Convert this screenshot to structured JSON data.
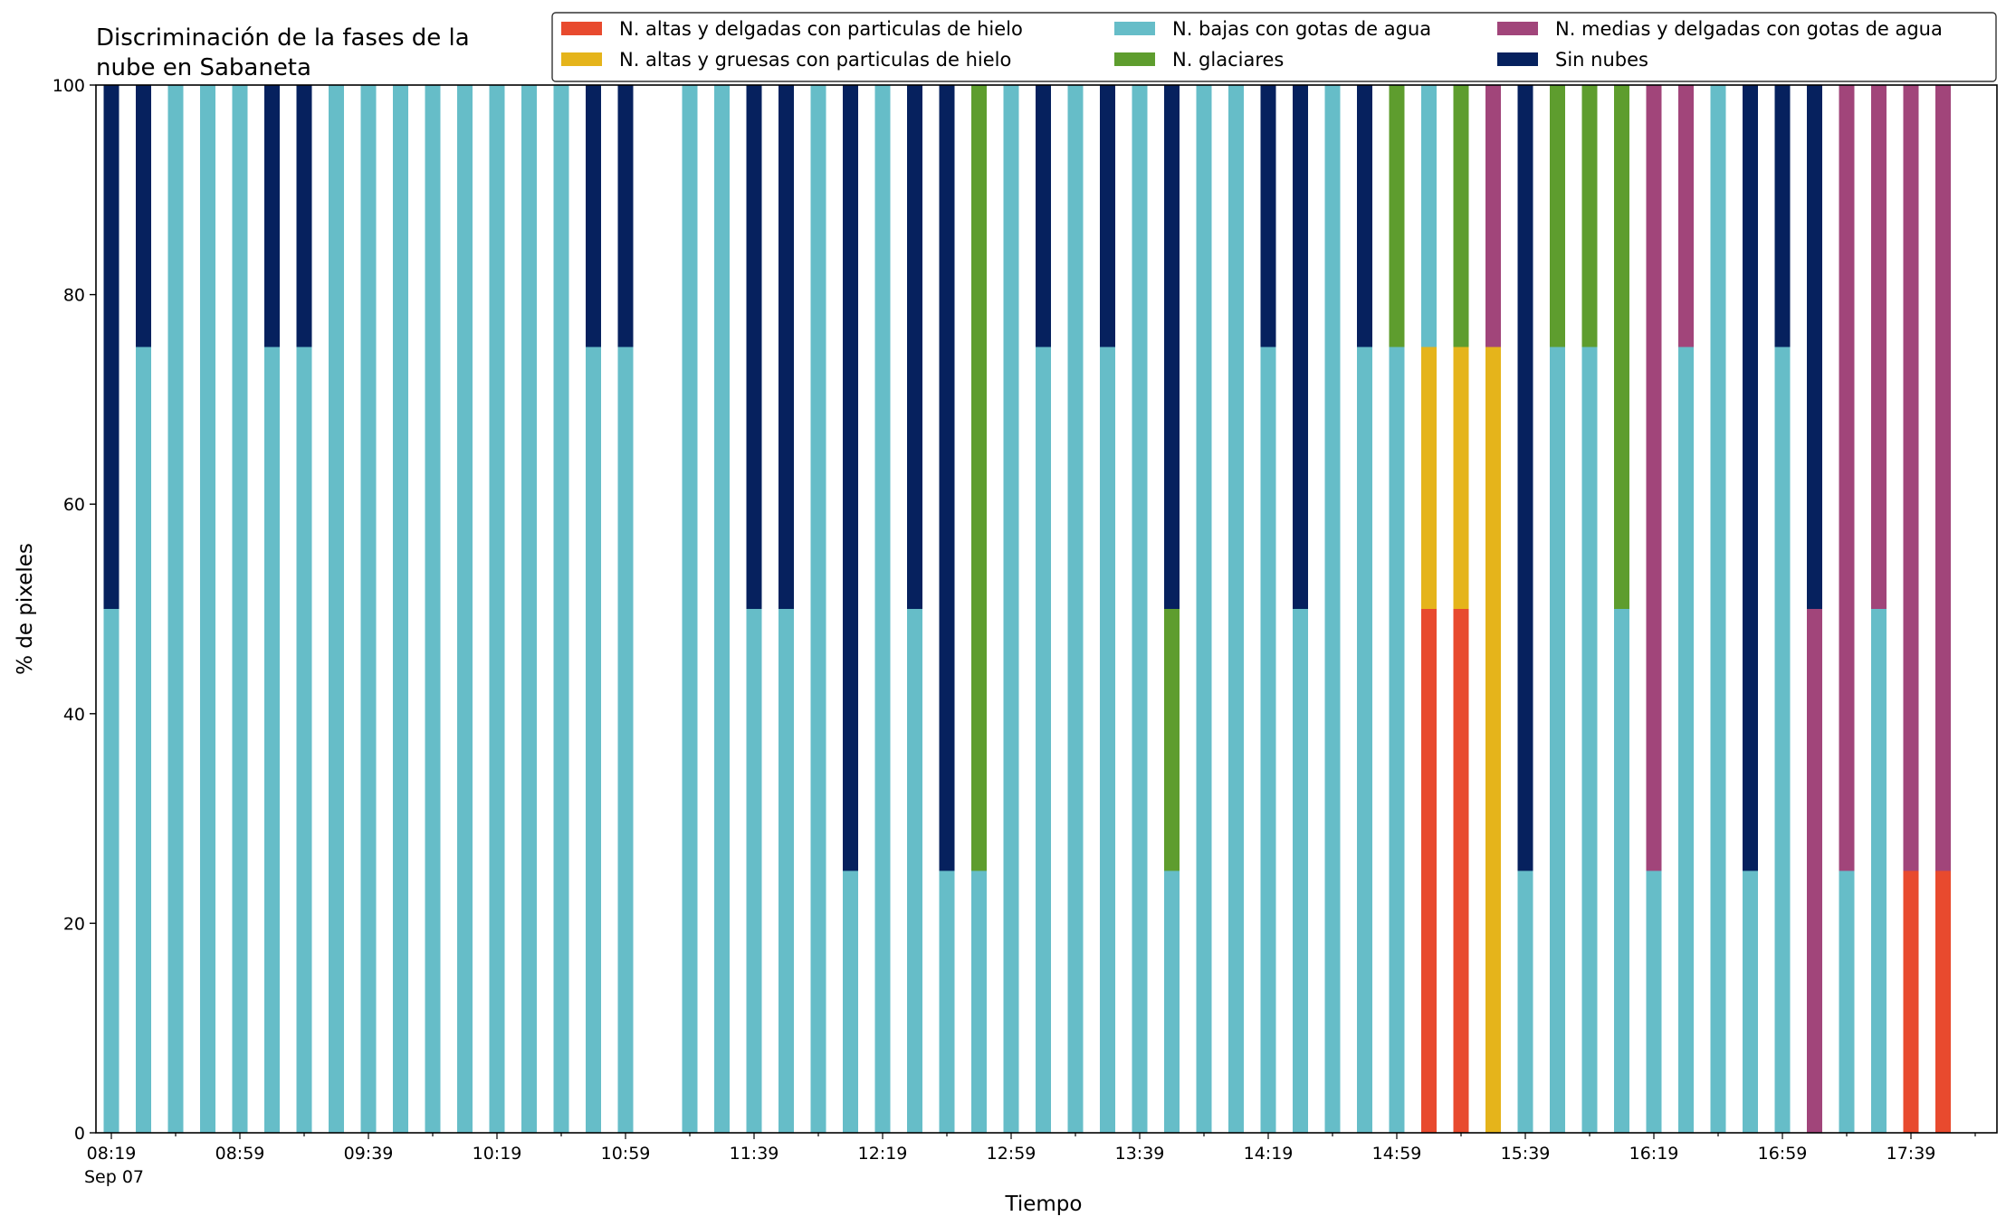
{
  "chart_data": {
    "type": "bar",
    "stacked": true,
    "title_lines": [
      "Discriminación de la fases de la",
      "nube en Sabaneta"
    ],
    "xlabel": "Tiempo",
    "ylabel": "% de pixeles",
    "ylim": [
      0,
      100
    ],
    "yticks": [
      "0",
      "20",
      "40",
      "60",
      "80",
      "100"
    ],
    "x_tick_labels": [
      "08:19",
      "08:59",
      "09:39",
      "10:19",
      "10:59",
      "11:39",
      "12:19",
      "12:59",
      "13:39",
      "14:19",
      "14:59",
      "15:39",
      "16:19",
      "16:59",
      "17:39"
    ],
    "x_date_label": "Sep 07",
    "legend_position": "top-right",
    "categories": [
      "08:19",
      "08:29",
      "08:39",
      "08:49",
      "08:59",
      "09:09",
      "09:19",
      "09:29",
      "09:39",
      "09:49",
      "09:59",
      "10:09",
      "10:19",
      "10:29",
      "10:39",
      "10:49",
      "10:59",
      "11:09",
      "11:19",
      "11:29",
      "11:39",
      "11:49",
      "11:59",
      "12:09",
      "12:19",
      "12:29",
      "12:39",
      "12:49",
      "12:59",
      "13:09",
      "13:19",
      "13:29",
      "13:39",
      "13:49",
      "13:59",
      "14:09",
      "14:19",
      "14:29",
      "14:39",
      "14:49",
      "14:59",
      "15:09",
      "15:19",
      "15:29",
      "15:39",
      "15:49",
      "15:59",
      "16:09",
      "16:19",
      "16:29",
      "16:39",
      "16:49",
      "16:59",
      "17:09",
      "17:19",
      "17:29",
      "17:39",
      "17:49"
    ],
    "series": [
      {
        "name": "N. altas y delgadas con particulas de hielo",
        "color": "#e84a2e",
        "values": [
          0,
          0,
          0,
          0,
          0,
          0,
          0,
          0,
          0,
          0,
          0,
          0,
          0,
          0,
          0,
          0,
          0,
          null,
          0,
          0,
          0,
          0,
          0,
          0,
          0,
          0,
          0,
          0,
          0,
          0,
          0,
          0,
          0,
          0,
          0,
          0,
          0,
          0,
          0,
          0,
          0,
          50,
          50,
          0,
          0,
          0,
          0,
          0,
          0,
          0,
          0,
          0,
          0,
          0,
          0,
          0,
          25,
          25
        ]
      },
      {
        "name": "N. altas y gruesas con particulas de hielo",
        "color": "#e5b41b",
        "values": [
          0,
          0,
          0,
          0,
          0,
          0,
          0,
          0,
          0,
          0,
          0,
          0,
          0,
          0,
          0,
          0,
          0,
          null,
          0,
          0,
          0,
          0,
          0,
          0,
          0,
          0,
          0,
          0,
          0,
          0,
          0,
          0,
          0,
          0,
          0,
          0,
          0,
          0,
          0,
          0,
          0,
          25,
          25,
          75,
          0,
          0,
          0,
          0,
          0,
          0,
          0,
          0,
          0,
          0,
          0,
          0,
          0,
          0
        ]
      },
      {
        "name": "N. bajas con gotas de agua",
        "color": "#66bdc8",
        "values": [
          50,
          75,
          100,
          100,
          100,
          75,
          75,
          100,
          100,
          100,
          100,
          100,
          100,
          100,
          100,
          75,
          75,
          null,
          100,
          100,
          50,
          50,
          100,
          25,
          100,
          50,
          25,
          25,
          100,
          75,
          100,
          75,
          100,
          25,
          100,
          100,
          75,
          50,
          100,
          75,
          75,
          25,
          0,
          0,
          25,
          75,
          75,
          50,
          25,
          75,
          100,
          25,
          75,
          0,
          25,
          50,
          0,
          0
        ]
      },
      {
        "name": "N. glaciares",
        "color": "#5e9d2e",
        "values": [
          0,
          0,
          0,
          0,
          0,
          0,
          0,
          0,
          0,
          0,
          0,
          0,
          0,
          0,
          0,
          0,
          0,
          null,
          0,
          0,
          0,
          0,
          0,
          0,
          0,
          0,
          0,
          75,
          0,
          0,
          0,
          0,
          0,
          25,
          0,
          0,
          0,
          0,
          0,
          0,
          25,
          0,
          25,
          0,
          0,
          25,
          25,
          50,
          0,
          0,
          0,
          0,
          0,
          0,
          0,
          0,
          0,
          0
        ]
      },
      {
        "name": "N. medias y delgadas con gotas de agua",
        "color": "#a1457a",
        "values": [
          0,
          0,
          0,
          0,
          0,
          0,
          0,
          0,
          0,
          0,
          0,
          0,
          0,
          0,
          0,
          0,
          0,
          null,
          0,
          0,
          0,
          0,
          0,
          0,
          0,
          0,
          0,
          0,
          0,
          0,
          0,
          0,
          0,
          0,
          0,
          0,
          0,
          0,
          0,
          0,
          0,
          0,
          0,
          25,
          0,
          0,
          0,
          0,
          75,
          25,
          0,
          0,
          0,
          50,
          75,
          50,
          75,
          75
        ]
      },
      {
        "name": "Sin nubes",
        "color": "#06215e",
        "values": [
          50,
          25,
          0,
          0,
          0,
          25,
          25,
          0,
          0,
          0,
          0,
          0,
          0,
          0,
          0,
          25,
          25,
          null,
          0,
          0,
          50,
          50,
          0,
          75,
          0,
          50,
          75,
          0,
          0,
          25,
          0,
          25,
          0,
          50,
          0,
          0,
          25,
          50,
          0,
          25,
          0,
          0,
          0,
          0,
          75,
          0,
          0,
          0,
          0,
          0,
          0,
          75,
          25,
          50,
          0,
          0,
          0,
          0
        ]
      }
    ]
  }
}
